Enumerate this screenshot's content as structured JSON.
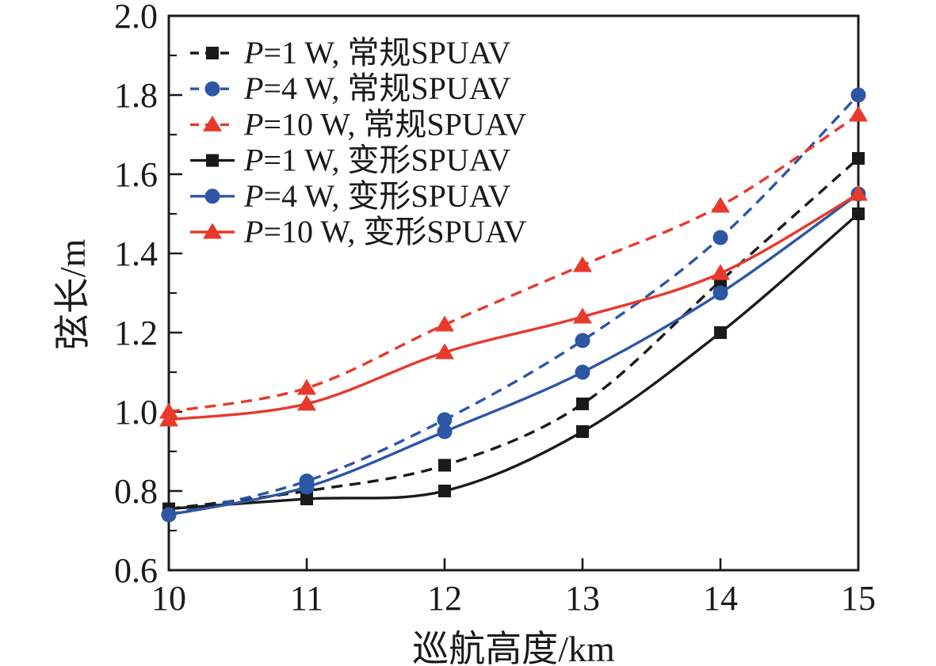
{
  "figure": {
    "background": "#ffffff",
    "axis_color": "#1a1a1a",
    "palette": {
      "black": "#1a1a1a",
      "blue": "#2d56a5",
      "red": "#e8392b"
    }
  },
  "chart_data": {
    "type": "line",
    "title": "",
    "xlabel": "巡航高度/km",
    "ylabel": "弦长/m",
    "x": [
      10,
      11,
      12,
      13,
      14,
      15
    ],
    "xlim": [
      10,
      15
    ],
    "ylim": [
      0.6,
      2.0
    ],
    "xticks": [
      "10",
      "11",
      "12",
      "13",
      "14",
      "15"
    ],
    "yticks": [
      "0.6",
      "0.8",
      "1.0",
      "1.2",
      "1.4",
      "1.6",
      "1.8",
      "2.0"
    ],
    "yticks_minor": [
      0.7,
      0.9,
      1.1,
      1.3,
      1.5,
      1.7,
      1.9
    ],
    "grid": false,
    "legend_position": "top-left",
    "series": [
      {
        "name": "P=1 W, 常规SPUAV",
        "color": "black",
        "line": "dashed",
        "marker": "square",
        "values": [
          0.755,
          0.8,
          0.865,
          1.02,
          1.33,
          1.64
        ]
      },
      {
        "name": "P=4 W, 常规SPUAV",
        "color": "blue",
        "line": "dashed",
        "marker": "circle",
        "values": [
          0.74,
          0.825,
          0.98,
          1.18,
          1.44,
          1.8
        ]
      },
      {
        "name": "P=10 W, 常规SPUAV",
        "color": "red",
        "line": "dashed",
        "marker": "triangle",
        "values": [
          1.0,
          1.06,
          1.22,
          1.37,
          1.52,
          1.75
        ]
      },
      {
        "name": "P=1 W, 变形SPUAV",
        "color": "black",
        "line": "solid",
        "marker": "square",
        "values": [
          0.755,
          0.78,
          0.8,
          0.95,
          1.2,
          1.5
        ]
      },
      {
        "name": "P=4 W, 变形SPUAV",
        "color": "blue",
        "line": "solid",
        "marker": "circle",
        "values": [
          0.74,
          0.81,
          0.95,
          1.1,
          1.3,
          1.55
        ]
      },
      {
        "name": "P=10 W, 变形SPUAV",
        "color": "red",
        "line": "solid",
        "marker": "triangle",
        "values": [
          0.98,
          1.02,
          1.15,
          1.24,
          1.35,
          1.55
        ]
      }
    ]
  }
}
